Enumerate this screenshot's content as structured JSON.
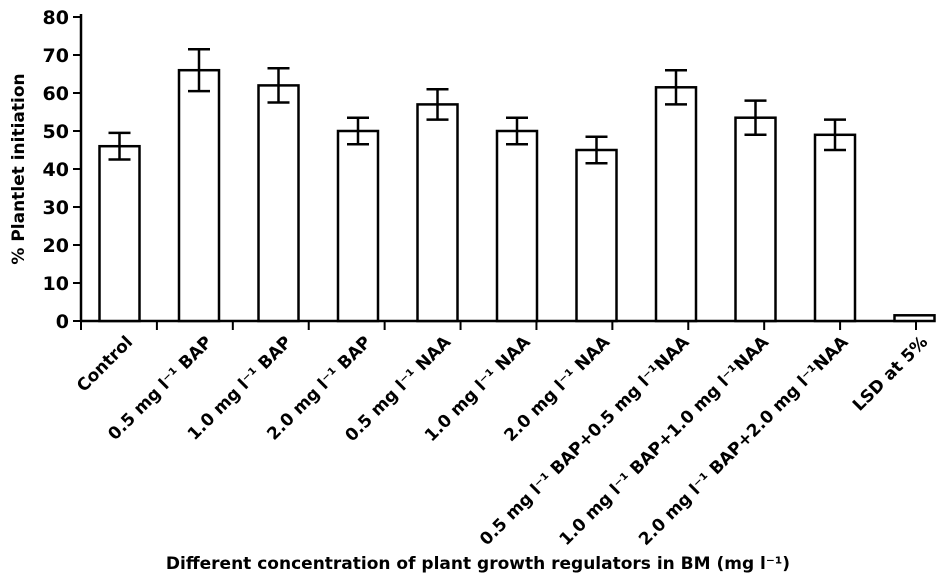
{
  "chart_data": {
    "type": "bar",
    "title": "",
    "xlabel": "Different concentration of plant growth regulators in BM (mg l⁻¹)",
    "ylabel": "% Plantlet initiation",
    "ylim": [
      0,
      80
    ],
    "yticks": [
      0,
      10,
      20,
      30,
      40,
      50,
      60,
      70,
      80
    ],
    "grid": false,
    "categories": [
      "Control",
      "0.5 mg l⁻¹ BAP",
      "1.0 mg l⁻¹ BAP",
      "2.0 mg l⁻¹ BAP",
      "0.5 mg l⁻¹ NAA",
      "1.0 mg l⁻¹ NAA",
      "2.0 mg l⁻¹ NAA",
      "0.5 mg l⁻¹ BAP+0.5 mg l⁻¹NAA",
      "1.0 mg l⁻¹ BAP+1.0 mg l⁻¹NAA",
      "2.0 mg l⁻¹ BAP+2.0 mg l⁻¹NAA",
      "LSD at 5%"
    ],
    "values": [
      46,
      66,
      62,
      50,
      57,
      50,
      45,
      61.5,
      53.5,
      49,
      1.5
    ],
    "error": [
      3.5,
      5.5,
      4.5,
      3.5,
      4,
      3.5,
      3.5,
      4.5,
      4.5,
      4,
      null
    ]
  }
}
